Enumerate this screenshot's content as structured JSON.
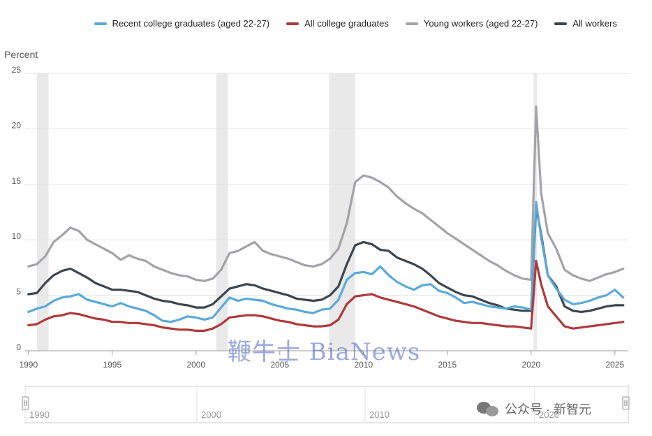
{
  "legend": [
    {
      "label": "Recent college graduates (aged 22-27)",
      "color": "#5aaad8"
    },
    {
      "label": "All college graduates",
      "color": "#b0393b"
    },
    {
      "label": "Young workers (aged 22-27)",
      "color": "#a3a3a7"
    },
    {
      "label": "All workers",
      "color": "#3d454c"
    }
  ],
  "ylabel": "Percent",
  "watermark": "鞭牛士 BiaNews",
  "wechat_label": "公众号 · 新智元",
  "navigator": {
    "labels": [
      "1990",
      "2000",
      "2010",
      "2020"
    ]
  },
  "chart_data": {
    "type": "line",
    "ylabel": "Percent",
    "xlim": [
      1989.8,
      2025.8
    ],
    "ylim": [
      0,
      25
    ],
    "yticks": [
      0,
      5,
      10,
      15,
      20,
      25
    ],
    "xticks": [
      1990,
      1995,
      2000,
      2005,
      2010,
      2015,
      2020,
      2025
    ],
    "recessions": [
      [
        1990.5,
        1991.2
      ],
      [
        2001.2,
        2001.9
      ],
      [
        2007.95,
        2009.5
      ],
      [
        2020.15,
        2020.35
      ]
    ],
    "grid": true,
    "legend_position": "top",
    "series": [
      {
        "name": "Young workers (aged 22-27)",
        "color": "#a3a3a7",
        "points": [
          [
            1990,
            7.6
          ],
          [
            1990.5,
            7.8
          ],
          [
            1991,
            8.5
          ],
          [
            1991.5,
            9.8
          ],
          [
            1992,
            10.4
          ],
          [
            1992.5,
            11.1
          ],
          [
            1993,
            10.8
          ],
          [
            1993.5,
            10.0
          ],
          [
            1994,
            9.6
          ],
          [
            1994.5,
            9.2
          ],
          [
            1995,
            8.8
          ],
          [
            1995.5,
            8.2
          ],
          [
            1996,
            8.6
          ],
          [
            1996.5,
            8.3
          ],
          [
            1997,
            8.1
          ],
          [
            1997.5,
            7.6
          ],
          [
            1998,
            7.3
          ],
          [
            1998.5,
            7.0
          ],
          [
            1999,
            6.8
          ],
          [
            1999.5,
            6.7
          ],
          [
            2000,
            6.4
          ],
          [
            2000.5,
            6.3
          ],
          [
            2001,
            6.5
          ],
          [
            2001.5,
            7.3
          ],
          [
            2002,
            8.8
          ],
          [
            2002.5,
            9.0
          ],
          [
            2003,
            9.4
          ],
          [
            2003.5,
            9.8
          ],
          [
            2004,
            9.0
          ],
          [
            2004.5,
            8.7
          ],
          [
            2005,
            8.5
          ],
          [
            2005.5,
            8.3
          ],
          [
            2006,
            8.0
          ],
          [
            2006.5,
            7.7
          ],
          [
            2007,
            7.6
          ],
          [
            2007.5,
            7.8
          ],
          [
            2008,
            8.3
          ],
          [
            2008.5,
            9.2
          ],
          [
            2009,
            11.5
          ],
          [
            2009.5,
            15.2
          ],
          [
            2010,
            15.8
          ],
          [
            2010.5,
            15.6
          ],
          [
            2011,
            15.2
          ],
          [
            2011.5,
            14.7
          ],
          [
            2012,
            13.9
          ],
          [
            2012.5,
            13.3
          ],
          [
            2013,
            12.8
          ],
          [
            2013.5,
            12.4
          ],
          [
            2014,
            11.8
          ],
          [
            2014.5,
            11.2
          ],
          [
            2015,
            10.6
          ],
          [
            2015.5,
            10.1
          ],
          [
            2016,
            9.6
          ],
          [
            2016.5,
            9.1
          ],
          [
            2017,
            8.6
          ],
          [
            2017.5,
            8.1
          ],
          [
            2018,
            7.7
          ],
          [
            2018.5,
            7.2
          ],
          [
            2019,
            6.8
          ],
          [
            2019.5,
            6.5
          ],
          [
            2020,
            6.4
          ],
          [
            2020.3,
            22.0
          ],
          [
            2020.6,
            14.2
          ],
          [
            2021,
            10.6
          ],
          [
            2021.5,
            9.2
          ],
          [
            2022,
            7.3
          ],
          [
            2022.5,
            6.8
          ],
          [
            2023,
            6.5
          ],
          [
            2023.5,
            6.3
          ],
          [
            2024,
            6.6
          ],
          [
            2024.5,
            6.9
          ],
          [
            2025,
            7.1
          ],
          [
            2025.5,
            7.4
          ]
        ]
      },
      {
        "name": "All workers",
        "color": "#3d454c",
        "points": [
          [
            1990,
            5.1
          ],
          [
            1990.5,
            5.2
          ],
          [
            1991,
            6.1
          ],
          [
            1991.5,
            6.8
          ],
          [
            1992,
            7.2
          ],
          [
            1992.5,
            7.4
          ],
          [
            1993,
            7.0
          ],
          [
            1993.5,
            6.6
          ],
          [
            1994,
            6.1
          ],
          [
            1994.5,
            5.8
          ],
          [
            1995,
            5.5
          ],
          [
            1995.5,
            5.5
          ],
          [
            1996,
            5.4
          ],
          [
            1996.5,
            5.3
          ],
          [
            1997,
            5.0
          ],
          [
            1997.5,
            4.7
          ],
          [
            1998,
            4.5
          ],
          [
            1998.5,
            4.4
          ],
          [
            1999,
            4.2
          ],
          [
            1999.5,
            4.1
          ],
          [
            2000,
            3.9
          ],
          [
            2000.5,
            3.9
          ],
          [
            2001,
            4.2
          ],
          [
            2001.5,
            4.9
          ],
          [
            2002,
            5.6
          ],
          [
            2002.5,
            5.8
          ],
          [
            2003,
            6.0
          ],
          [
            2003.5,
            5.9
          ],
          [
            2004,
            5.6
          ],
          [
            2004.5,
            5.4
          ],
          [
            2005,
            5.2
          ],
          [
            2005.5,
            5.0
          ],
          [
            2006,
            4.7
          ],
          [
            2006.5,
            4.6
          ],
          [
            2007,
            4.5
          ],
          [
            2007.5,
            4.6
          ],
          [
            2008,
            5.0
          ],
          [
            2008.5,
            5.8
          ],
          [
            2009,
            7.8
          ],
          [
            2009.5,
            9.5
          ],
          [
            2010,
            9.8
          ],
          [
            2010.5,
            9.6
          ],
          [
            2011,
            9.1
          ],
          [
            2011.5,
            9.0
          ],
          [
            2012,
            8.4
          ],
          [
            2012.5,
            8.1
          ],
          [
            2013,
            7.8
          ],
          [
            2013.5,
            7.4
          ],
          [
            2014,
            6.8
          ],
          [
            2014.5,
            6.1
          ],
          [
            2015,
            5.7
          ],
          [
            2015.5,
            5.3
          ],
          [
            2016,
            5.0
          ],
          [
            2016.5,
            4.9
          ],
          [
            2017,
            4.6
          ],
          [
            2017.5,
            4.3
          ],
          [
            2018,
            4.1
          ],
          [
            2018.5,
            3.8
          ],
          [
            2019,
            3.7
          ],
          [
            2019.5,
            3.6
          ],
          [
            2020,
            3.6
          ],
          [
            2020.3,
            13.0
          ],
          [
            2020.6,
            10.5
          ],
          [
            2021,
            6.8
          ],
          [
            2021.5,
            5.8
          ],
          [
            2022,
            4.0
          ],
          [
            2022.5,
            3.6
          ],
          [
            2023,
            3.5
          ],
          [
            2023.5,
            3.6
          ],
          [
            2024,
            3.8
          ],
          [
            2024.5,
            4.0
          ],
          [
            2025,
            4.1
          ],
          [
            2025.5,
            4.1
          ]
        ]
      },
      {
        "name": "Recent college graduates (aged 22-27)",
        "color": "#5aaad8",
        "points": [
          [
            1990,
            3.5
          ],
          [
            1990.5,
            3.8
          ],
          [
            1991,
            4.0
          ],
          [
            1991.5,
            4.5
          ],
          [
            1992,
            4.8
          ],
          [
            1992.5,
            4.9
          ],
          [
            1993,
            5.1
          ],
          [
            1993.5,
            4.6
          ],
          [
            1994,
            4.4
          ],
          [
            1994.5,
            4.2
          ],
          [
            1995,
            4.0
          ],
          [
            1995.5,
            4.3
          ],
          [
            1996,
            4.0
          ],
          [
            1996.5,
            3.8
          ],
          [
            1997,
            3.6
          ],
          [
            1997.5,
            3.2
          ],
          [
            1998,
            2.7
          ],
          [
            1998.5,
            2.6
          ],
          [
            1999,
            2.8
          ],
          [
            1999.5,
            3.1
          ],
          [
            2000,
            3.0
          ],
          [
            2000.5,
            2.8
          ],
          [
            2001,
            3.0
          ],
          [
            2001.5,
            3.9
          ],
          [
            2002,
            4.8
          ],
          [
            2002.5,
            4.5
          ],
          [
            2003,
            4.7
          ],
          [
            2003.5,
            4.6
          ],
          [
            2004,
            4.5
          ],
          [
            2004.5,
            4.2
          ],
          [
            2005,
            4.0
          ],
          [
            2005.5,
            3.8
          ],
          [
            2006,
            3.7
          ],
          [
            2006.5,
            3.5
          ],
          [
            2007,
            3.4
          ],
          [
            2007.5,
            3.7
          ],
          [
            2008,
            3.8
          ],
          [
            2008.5,
            4.6
          ],
          [
            2009,
            6.4
          ],
          [
            2009.5,
            7.0
          ],
          [
            2010,
            7.1
          ],
          [
            2010.5,
            6.9
          ],
          [
            2011,
            7.6
          ],
          [
            2011.5,
            6.8
          ],
          [
            2012,
            6.2
          ],
          [
            2012.5,
            5.8
          ],
          [
            2013,
            5.5
          ],
          [
            2013.5,
            5.9
          ],
          [
            2014,
            6.0
          ],
          [
            2014.5,
            5.4
          ],
          [
            2015,
            5.2
          ],
          [
            2015.5,
            4.8
          ],
          [
            2016,
            4.3
          ],
          [
            2016.5,
            4.4
          ],
          [
            2017,
            4.2
          ],
          [
            2017.5,
            4.0
          ],
          [
            2018,
            3.9
          ],
          [
            2018.5,
            3.8
          ],
          [
            2019,
            4.0
          ],
          [
            2019.5,
            3.9
          ],
          [
            2020,
            3.7
          ],
          [
            2020.3,
            13.4
          ],
          [
            2020.6,
            10.2
          ],
          [
            2021,
            6.8
          ],
          [
            2021.5,
            5.6
          ],
          [
            2022,
            4.6
          ],
          [
            2022.5,
            4.2
          ],
          [
            2023,
            4.3
          ],
          [
            2023.5,
            4.5
          ],
          [
            2024,
            4.8
          ],
          [
            2024.5,
            5.0
          ],
          [
            2025,
            5.5
          ],
          [
            2025.5,
            4.8
          ]
        ]
      },
      {
        "name": "All college graduates",
        "color": "#b0393b",
        "points": [
          [
            1990,
            2.3
          ],
          [
            1990.5,
            2.4
          ],
          [
            1991,
            2.8
          ],
          [
            1991.5,
            3.1
          ],
          [
            1992,
            3.2
          ],
          [
            1992.5,
            3.4
          ],
          [
            1993,
            3.3
          ],
          [
            1993.5,
            3.1
          ],
          [
            1994,
            2.9
          ],
          [
            1994.5,
            2.8
          ],
          [
            1995,
            2.6
          ],
          [
            1995.5,
            2.6
          ],
          [
            1996,
            2.5
          ],
          [
            1996.5,
            2.5
          ],
          [
            1997,
            2.4
          ],
          [
            1997.5,
            2.3
          ],
          [
            1998,
            2.1
          ],
          [
            1998.5,
            2.0
          ],
          [
            1999,
            1.9
          ],
          [
            1999.5,
            1.9
          ],
          [
            2000,
            1.8
          ],
          [
            2000.5,
            1.8
          ],
          [
            2001,
            2.0
          ],
          [
            2001.5,
            2.4
          ],
          [
            2002,
            3.0
          ],
          [
            2002.5,
            3.1
          ],
          [
            2003,
            3.2
          ],
          [
            2003.5,
            3.2
          ],
          [
            2004,
            3.1
          ],
          [
            2004.5,
            2.9
          ],
          [
            2005,
            2.7
          ],
          [
            2005.5,
            2.6
          ],
          [
            2006,
            2.4
          ],
          [
            2006.5,
            2.3
          ],
          [
            2007,
            2.2
          ],
          [
            2007.5,
            2.2
          ],
          [
            2008,
            2.3
          ],
          [
            2008.5,
            2.8
          ],
          [
            2009,
            4.2
          ],
          [
            2009.5,
            4.9
          ],
          [
            2010,
            5.0
          ],
          [
            2010.5,
            5.1
          ],
          [
            2011,
            4.8
          ],
          [
            2011.5,
            4.6
          ],
          [
            2012,
            4.4
          ],
          [
            2012.5,
            4.2
          ],
          [
            2013,
            4.0
          ],
          [
            2013.5,
            3.7
          ],
          [
            2014,
            3.4
          ],
          [
            2014.5,
            3.1
          ],
          [
            2015,
            2.9
          ],
          [
            2015.5,
            2.7
          ],
          [
            2016,
            2.6
          ],
          [
            2016.5,
            2.5
          ],
          [
            2017,
            2.5
          ],
          [
            2017.5,
            2.4
          ],
          [
            2018,
            2.3
          ],
          [
            2018.5,
            2.2
          ],
          [
            2019,
            2.2
          ],
          [
            2019.5,
            2.1
          ],
          [
            2020,
            2.0
          ],
          [
            2020.3,
            8.1
          ],
          [
            2020.6,
            6.0
          ],
          [
            2021,
            4.0
          ],
          [
            2021.5,
            3.1
          ],
          [
            2022,
            2.2
          ],
          [
            2022.5,
            2.0
          ],
          [
            2023,
            2.1
          ],
          [
            2023.5,
            2.2
          ],
          [
            2024,
            2.3
          ],
          [
            2024.5,
            2.4
          ],
          [
            2025,
            2.5
          ],
          [
            2025.5,
            2.6
          ]
        ]
      }
    ]
  }
}
